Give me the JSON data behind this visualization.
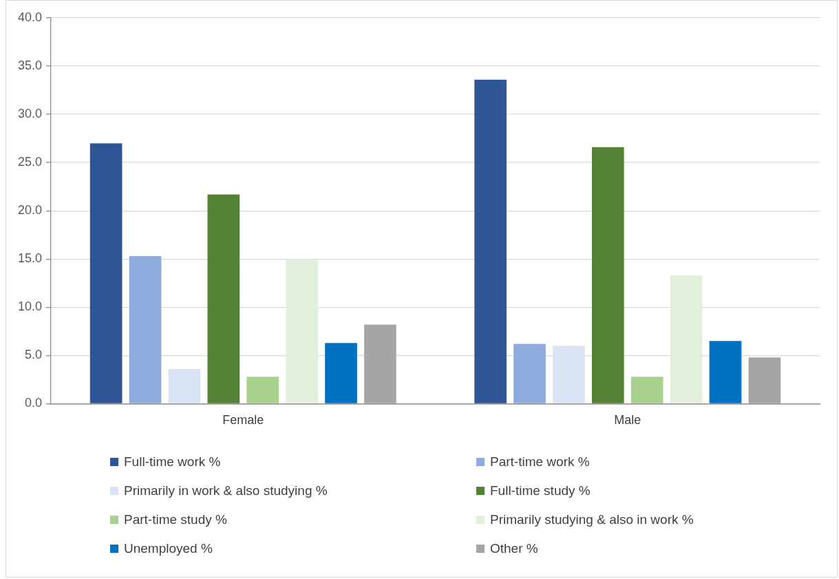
{
  "chart_data": {
    "type": "bar",
    "categories": [
      "Female",
      "Male"
    ],
    "series": [
      {
        "name": "Full-time work %",
        "color": "#2f5597",
        "values": [
          27.0,
          33.6
        ]
      },
      {
        "name": "Part-time work %",
        "color": "#8faadc",
        "values": [
          15.3,
          6.2
        ]
      },
      {
        "name": "Primarily in work & also studying %",
        "color": "#dae3f3",
        "values": [
          3.6,
          6.0
        ]
      },
      {
        "name": "Full-time study %",
        "color": "#548235",
        "values": [
          21.7,
          26.6
        ]
      },
      {
        "name": "Part-time study %",
        "color": "#a9d18e",
        "values": [
          2.8,
          2.8
        ]
      },
      {
        "name": "Primarily studying & also in work %",
        "color": "#e2efda",
        "values": [
          14.9,
          13.3
        ]
      },
      {
        "name": "Unemployed %",
        "color": "#0070c0",
        "values": [
          6.3,
          6.5
        ]
      },
      {
        "name": "Other %",
        "color": "#a5a5a5",
        "values": [
          8.2,
          4.8
        ]
      }
    ],
    "ylim": [
      0,
      40
    ],
    "yticks": [
      {
        "value": 0,
        "label": "0.0"
      },
      {
        "value": 5,
        "label": "5.0"
      },
      {
        "value": 10,
        "label": "10.0"
      },
      {
        "value": 15,
        "label": "15.0"
      },
      {
        "value": 20,
        "label": "20.0"
      },
      {
        "value": 25,
        "label": "25.0"
      },
      {
        "value": 30,
        "label": "30.0"
      },
      {
        "value": 35,
        "label": "35.0"
      },
      {
        "value": 40,
        "label": "40.0"
      }
    ],
    "grid": "y",
    "legend": "bottom"
  }
}
